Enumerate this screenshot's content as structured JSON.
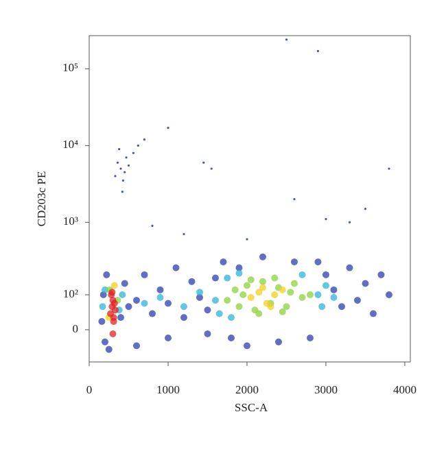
{
  "chart_data": {
    "type": "scatter",
    "xlabel": "SSC-A",
    "ylabel": "CD203c PE",
    "xlim": [
      0,
      4070
    ],
    "xticks": [
      0,
      1000,
      2000,
      3000,
      4000
    ],
    "ylim": [
      -90,
      270000
    ],
    "yscale": "biexponential",
    "yticks": [
      0,
      {
        "value": 100,
        "label": "10²"
      },
      {
        "value": 1000,
        "label": "10³"
      },
      {
        "value": 10000,
        "label": "10⁴"
      },
      {
        "value": 100000,
        "label": "10⁵"
      }
    ],
    "series": [
      {
        "color": "#2b3fb0",
        "x": [
          160,
          180,
          200,
          220,
          250,
          400,
          450,
          500,
          600,
          700,
          800,
          900,
          1000,
          1100,
          1200,
          1300,
          1400,
          1500,
          1600,
          1700,
          1800,
          1900,
          2900,
          3000,
          3100,
          3200,
          3300,
          3400,
          3500,
          3600,
          3700,
          3800,
          2000,
          2200,
          2400,
          2600,
          2800,
          1500,
          1000,
          600
        ],
        "values": [
          20,
          100,
          -30,
          200,
          -50,
          30,
          150,
          60,
          80,
          200,
          40,
          120,
          70,
          250,
          30,
          160,
          90,
          50,
          180,
          300,
          -20,
          250,
          300,
          200,
          120,
          60,
          250,
          80,
          150,
          40,
          200,
          100,
          -40,
          350,
          -30,
          300,
          -20,
          -10,
          -20,
          -40
        ]
      },
      {
        "color": "#2fb3d9",
        "x": [
          170,
          200,
          380,
          420,
          700,
          900,
          1200,
          1400,
          1600,
          1650,
          1750,
          1800,
          2900,
          2950,
          3000,
          3100,
          1900,
          2700
        ],
        "values": [
          60,
          120,
          50,
          100,
          70,
          90,
          60,
          110,
          80,
          40,
          180,
          30,
          100,
          60,
          140,
          90,
          210,
          200
        ]
      },
      {
        "color": "#8cd23c",
        "x": [
          1750,
          1850,
          1900,
          2000,
          2100,
          2200,
          2300,
          2400,
          2500,
          2600,
          2700,
          2800,
          1950,
          2150,
          2350,
          2550,
          2050,
          2450,
          360,
          260
        ],
        "values": [
          80,
          120,
          60,
          140,
          50,
          160,
          70,
          130,
          60,
          150,
          90,
          100,
          100,
          40,
          180,
          110,
          170,
          45,
          80,
          120
        ]
      },
      {
        "color": "#f0d020",
        "x": [
          2050,
          2150,
          2250,
          2350,
          2450,
          2200,
          2300,
          320,
          250
        ],
        "values": [
          90,
          110,
          70,
          100,
          120,
          130,
          60,
          140,
          30
        ]
      },
      {
        "color": "#e02020",
        "x": [
          270,
          290,
          300,
          310,
          330,
          280,
          320,
          300,
          290,
          310
        ],
        "values": [
          40,
          60,
          80,
          20,
          50,
          100,
          70,
          -10,
          110,
          30
        ]
      },
      {
        "color": "#4a5ab0",
        "x": [
          330,
          360,
          400,
          430,
          470,
          500,
          380,
          420,
          450,
          560,
          620,
          700,
          1000,
          1450,
          1550,
          2500,
          2900,
          3800,
          3500,
          3000,
          2000,
          2600,
          1200,
          800,
          3300
        ],
        "values": [
          4000,
          6000,
          5000,
          3500,
          7000,
          5500,
          9000,
          2500,
          4500,
          8000,
          10000,
          12000,
          17000,
          6000,
          5000,
          240000,
          170000,
          5000,
          1500,
          1100,
          600,
          2000,
          700,
          900,
          1000
        ]
      }
    ]
  }
}
